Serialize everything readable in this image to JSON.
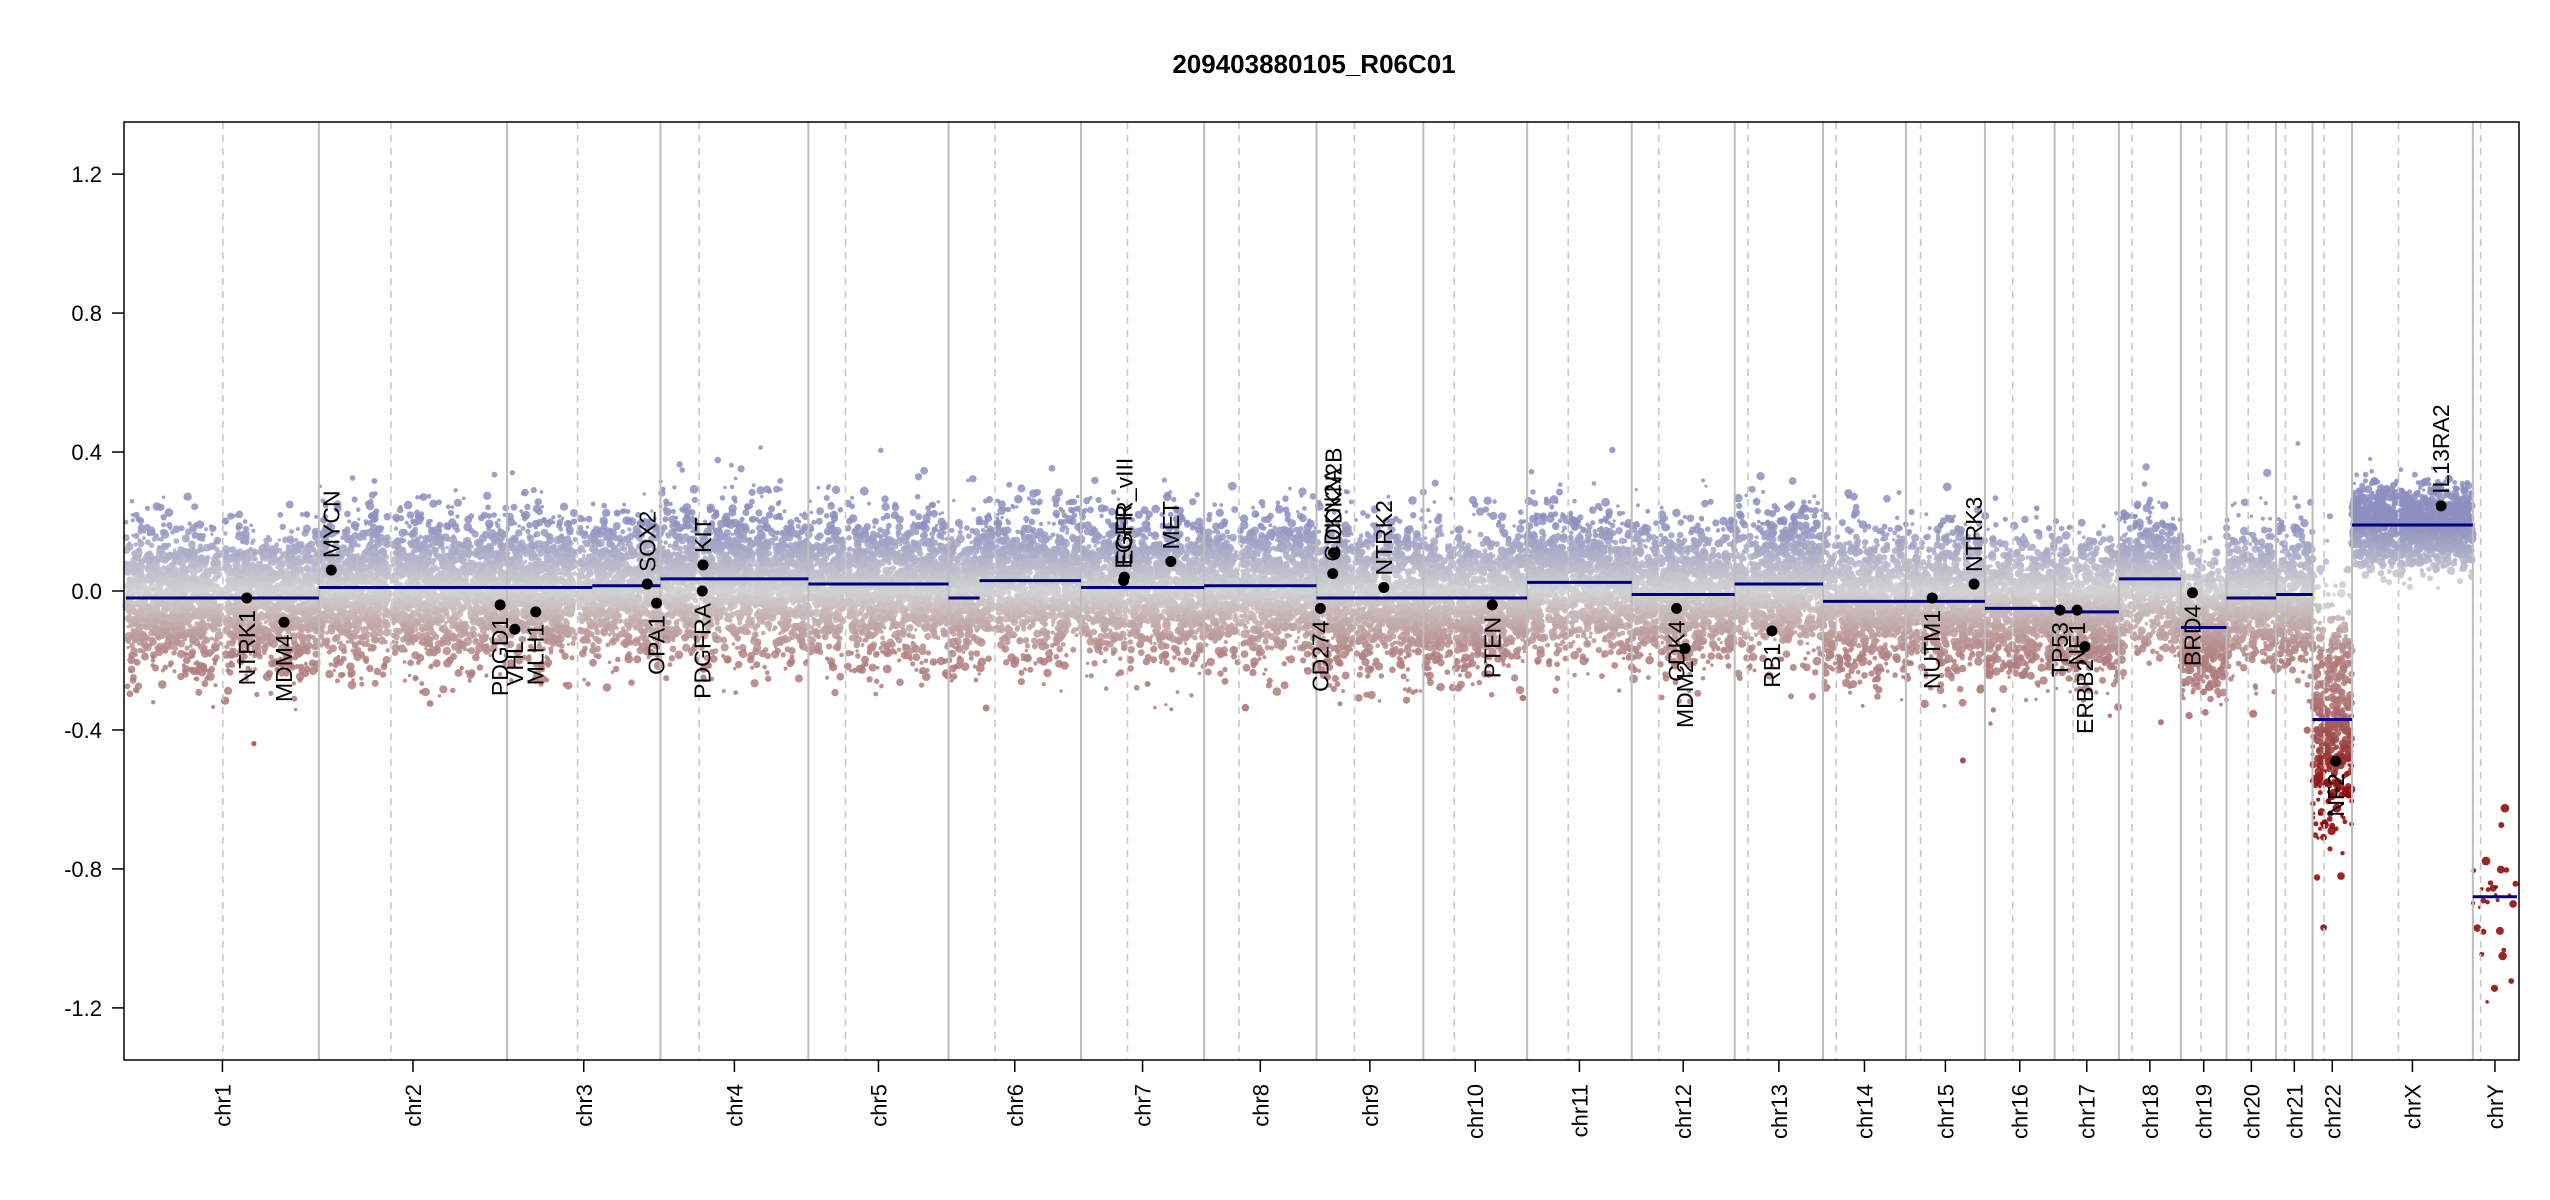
{
  "chart_data": {
    "type": "scatter",
    "title": "209403880105_R06C01",
    "xlabel": "",
    "ylabel": "",
    "ylim": [
      -1.35,
      1.35
    ],
    "y_ticks": [
      {
        "value": -1.2,
        "label": "-1.2"
      },
      {
        "value": -0.8,
        "label": "-0.8"
      },
      {
        "value": -0.4,
        "label": "-0.4"
      },
      {
        "value": 0.0,
        "label": "0.0"
      },
      {
        "value": 0.4,
        "label": "0.4"
      },
      {
        "value": 0.8,
        "label": "0.8"
      },
      {
        "value": 1.2,
        "label": "1.2"
      }
    ],
    "grid": false,
    "chromosomes": [
      {
        "name": "chr1",
        "len": 249,
        "cen": 125
      },
      {
        "name": "chr2",
        "len": 243,
        "cen": 93
      },
      {
        "name": "chr3",
        "len": 198,
        "cen": 91
      },
      {
        "name": "chr4",
        "len": 191,
        "cen": 50
      },
      {
        "name": "chr5",
        "len": 181,
        "cen": 48
      },
      {
        "name": "chr6",
        "len": 171,
        "cen": 60
      },
      {
        "name": "chr7",
        "len": 159,
        "cen": 60
      },
      {
        "name": "chr8",
        "len": 145,
        "cen": 45
      },
      {
        "name": "chr9",
        "len": 138,
        "cen": 49
      },
      {
        "name": "chr10",
        "len": 134,
        "cen": 40
      },
      {
        "name": "chr11",
        "len": 135,
        "cen": 53
      },
      {
        "name": "chr12",
        "len": 133,
        "cen": 35
      },
      {
        "name": "chr13",
        "len": 114,
        "cen": 17
      },
      {
        "name": "chr14",
        "len": 107,
        "cen": 17
      },
      {
        "name": "chr15",
        "len": 102,
        "cen": 19
      },
      {
        "name": "chr16",
        "len": 90,
        "cen": 36
      },
      {
        "name": "chr17",
        "len": 83,
        "cen": 24
      },
      {
        "name": "chr18",
        "len": 80,
        "cen": 17
      },
      {
        "name": "chr19",
        "len": 59,
        "cen": 26
      },
      {
        "name": "chr20",
        "len": 64,
        "cen": 28
      },
      {
        "name": "chr21",
        "len": 47,
        "cen": 12
      },
      {
        "name": "chr22",
        "len": 51,
        "cen": 15
      },
      {
        "name": "chrX",
        "len": 156,
        "cen": 60
      },
      {
        "name": "chrY",
        "len": 57,
        "cen": 10
      }
    ],
    "segments": [
      {
        "chr": "chr1",
        "start": 0,
        "end": 249,
        "mean": -0.02
      },
      {
        "chr": "chr2",
        "start": 0,
        "end": 243,
        "mean": 0.01
      },
      {
        "chr": "chr3",
        "start": 0,
        "end": 110,
        "mean": 0.01
      },
      {
        "chr": "chr3",
        "start": 110,
        "end": 198,
        "mean": 0.015
      },
      {
        "chr": "chr4",
        "start": 0,
        "end": 191,
        "mean": 0.035
      },
      {
        "chr": "chr5",
        "start": 0,
        "end": 181,
        "mean": 0.02
      },
      {
        "chr": "chr6",
        "start": 0,
        "end": 40,
        "mean": -0.02
      },
      {
        "chr": "chr6",
        "start": 40,
        "end": 171,
        "mean": 0.03
      },
      {
        "chr": "chr7",
        "start": 0,
        "end": 159,
        "mean": 0.01
      },
      {
        "chr": "chr8",
        "start": 0,
        "end": 145,
        "mean": 0.015
      },
      {
        "chr": "chr9",
        "start": 0,
        "end": 138,
        "mean": -0.02
      },
      {
        "chr": "chr10",
        "start": 0,
        "end": 134,
        "mean": -0.02
      },
      {
        "chr": "chr11",
        "start": 0,
        "end": 135,
        "mean": 0.025
      },
      {
        "chr": "chr12",
        "start": 0,
        "end": 133,
        "mean": -0.01
      },
      {
        "chr": "chr13",
        "start": 0,
        "end": 114,
        "mean": 0.02
      },
      {
        "chr": "chr14",
        "start": 0,
        "end": 107,
        "mean": -0.03
      },
      {
        "chr": "chr15",
        "start": 0,
        "end": 102,
        "mean": -0.03
      },
      {
        "chr": "chr16",
        "start": 0,
        "end": 90,
        "mean": -0.05
      },
      {
        "chr": "chr17",
        "start": 0,
        "end": 83,
        "mean": -0.06
      },
      {
        "chr": "chr18",
        "start": 0,
        "end": 80,
        "mean": 0.035
      },
      {
        "chr": "chr19",
        "start": 0,
        "end": 59,
        "mean": -0.105
      },
      {
        "chr": "chr20",
        "start": 0,
        "end": 64,
        "mean": -0.02
      },
      {
        "chr": "chr21",
        "start": 0,
        "end": 47,
        "mean": -0.01
      },
      {
        "chr": "chr22",
        "start": 0,
        "end": 51,
        "mean": -0.37
      },
      {
        "chr": "chrX",
        "start": 0,
        "end": 156,
        "mean": 0.19
      },
      {
        "chr": "chrY",
        "start": 0,
        "end": 57,
        "mean": -0.88
      }
    ],
    "genes": [
      {
        "name": "NTRK1",
        "chr": "chr1",
        "pos": 156,
        "value": -0.02,
        "side": "below"
      },
      {
        "name": "MDM4",
        "chr": "chr1",
        "pos": 204,
        "value": -0.09,
        "side": "below"
      },
      {
        "name": "MYCN",
        "chr": "chr2",
        "pos": 16,
        "value": 0.06,
        "side": "above"
      },
      {
        "name": "PDGD1",
        "chr": "chr2",
        "pos": 234,
        "value": -0.04,
        "side": "below"
      },
      {
        "name": "VHL",
        "chr": "chr3",
        "pos": 10,
        "value": -0.11,
        "side": "below"
      },
      {
        "name": "MLH1",
        "chr": "chr3",
        "pos": 37,
        "value": -0.06,
        "side": "below"
      },
      {
        "name": "SOX2",
        "chr": "chr3",
        "pos": 181,
        "value": 0.02,
        "side": "above"
      },
      {
        "name": "OPA1",
        "chr": "chr3",
        "pos": 193,
        "value": -0.035,
        "side": "below"
      },
      {
        "name": "KIT",
        "chr": "chr4",
        "pos": 55,
        "value": 0.075,
        "side": "above"
      },
      {
        "name": "PDGFRA",
        "chr": "chr4",
        "pos": 54,
        "value": 0.0,
        "side": "below"
      },
      {
        "name": "EGFR",
        "chr": "chr7",
        "pos": 55,
        "value": 0.03,
        "side": "above"
      },
      {
        "name": "EGFR_vIII",
        "chr": "chr7",
        "pos": 56,
        "value": 0.04,
        "side": "above"
      },
      {
        "name": "MET",
        "chr": "chr7",
        "pos": 116,
        "value": 0.085,
        "side": "above"
      },
      {
        "name": "CD274",
        "chr": "chr9",
        "pos": 5,
        "value": -0.05,
        "side": "below"
      },
      {
        "name": "CDKN2A",
        "chr": "chr9",
        "pos": 21,
        "value": 0.05,
        "side": "above"
      },
      {
        "name": "CDKN2B",
        "chr": "chr9",
        "pos": 22,
        "value": 0.11,
        "side": "above"
      },
      {
        "name": "NTRK2",
        "chr": "chr9",
        "pos": 87,
        "value": 0.01,
        "side": "above"
      },
      {
        "name": "PTEN",
        "chr": "chr10",
        "pos": 89,
        "value": -0.04,
        "side": "below"
      },
      {
        "name": "CDK4",
        "chr": "chr12",
        "pos": 58,
        "value": -0.05,
        "side": "below"
      },
      {
        "name": "MDM2",
        "chr": "chr12",
        "pos": 69,
        "value": -0.165,
        "side": "below"
      },
      {
        "name": "RB1",
        "chr": "chr13",
        "pos": 48,
        "value": -0.115,
        "side": "below"
      },
      {
        "name": "NUTM1",
        "chr": "chr15",
        "pos": 34,
        "value": -0.02,
        "side": "below"
      },
      {
        "name": "NTRK3",
        "chr": "chr15",
        "pos": 88,
        "value": 0.02,
        "side": "above"
      },
      {
        "name": "TP53",
        "chr": "chr17",
        "pos": 7,
        "value": -0.055,
        "side": "below"
      },
      {
        "name": "NF1",
        "chr": "chr17",
        "pos": 29,
        "value": -0.055,
        "side": "below"
      },
      {
        "name": "ERBB2",
        "chr": "chr17",
        "pos": 39,
        "value": -0.16,
        "side": "below"
      },
      {
        "name": "BRD4",
        "chr": "chr19",
        "pos": 15,
        "value": -0.005,
        "side": "below"
      },
      {
        "name": "NF2",
        "chr": "chr22",
        "pos": 30,
        "value": -0.49,
        "side": "below"
      },
      {
        "name": "IL13RA2",
        "chr": "chrX",
        "pos": 115,
        "value": 0.245,
        "side": "above"
      }
    ],
    "colors": {
      "segment": "#000080",
      "gain": "#8d8fbf",
      "neutral": "#d2d2d2",
      "loss": "#b07c7c",
      "strong_loss": "#8b0000",
      "chr_border": "#bdbdbd",
      "centromere": "#c8c8c8"
    }
  }
}
